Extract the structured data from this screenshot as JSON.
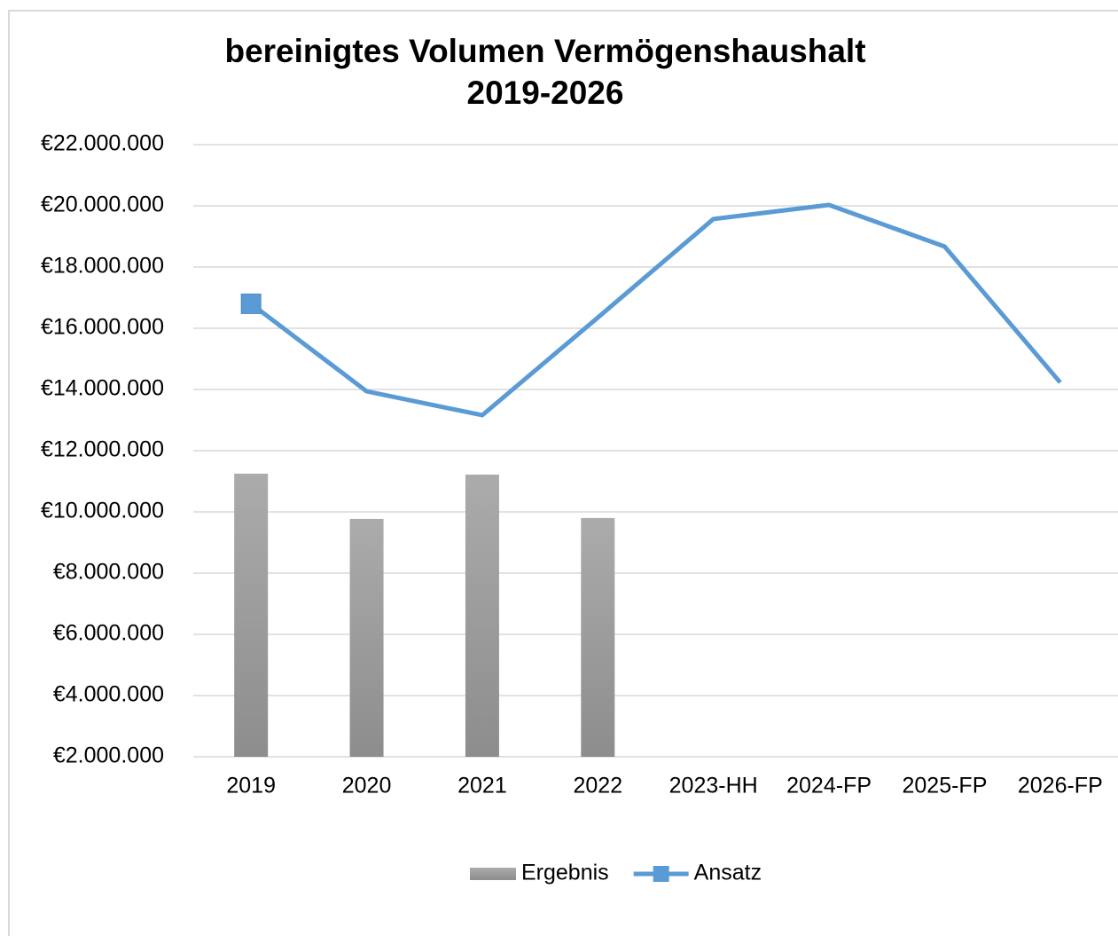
{
  "chart_data": {
    "type": "bar-line",
    "title": [
      "bereinigtes Volumen Vermögenshaushalt",
      "2019-2026"
    ],
    "categories": [
      "2019",
      "2020",
      "2021",
      "2022",
      "2023-HH",
      "2024-FP",
      "2025-FP",
      "2026-FP"
    ],
    "series": [
      {
        "name": "Ergebnis",
        "type": "bar",
        "color": "#9d9d9d",
        "values": [
          11250000,
          9770000,
          11220000,
          9800000,
          null,
          null,
          null,
          null
        ]
      },
      {
        "name": "Ansatz",
        "type": "line",
        "color": "#5b9bd5",
        "values": [
          16800000,
          13940000,
          13160000,
          16350000,
          19570000,
          20030000,
          18670000,
          14230000
        ]
      }
    ],
    "ylim": [
      2000000,
      22000000
    ],
    "yticks": [
      {
        "value": 2000000,
        "label": "€2.000.000"
      },
      {
        "value": 4000000,
        "label": "€4.000.000"
      },
      {
        "value": 6000000,
        "label": "€6.000.000"
      },
      {
        "value": 8000000,
        "label": "€8.000.000"
      },
      {
        "value": 10000000,
        "label": "€10.000.000"
      },
      {
        "value": 12000000,
        "label": "€12.000.000"
      },
      {
        "value": 14000000,
        "label": "€14.000.000"
      },
      {
        "value": 16000000,
        "label": "€16.000.000"
      },
      {
        "value": 18000000,
        "label": "€18.000.000"
      },
      {
        "value": 20000000,
        "label": "€20.000.000"
      },
      {
        "value": 22000000,
        "label": "€22.000.000"
      }
    ],
    "grid": true,
    "legend": "bottom"
  }
}
